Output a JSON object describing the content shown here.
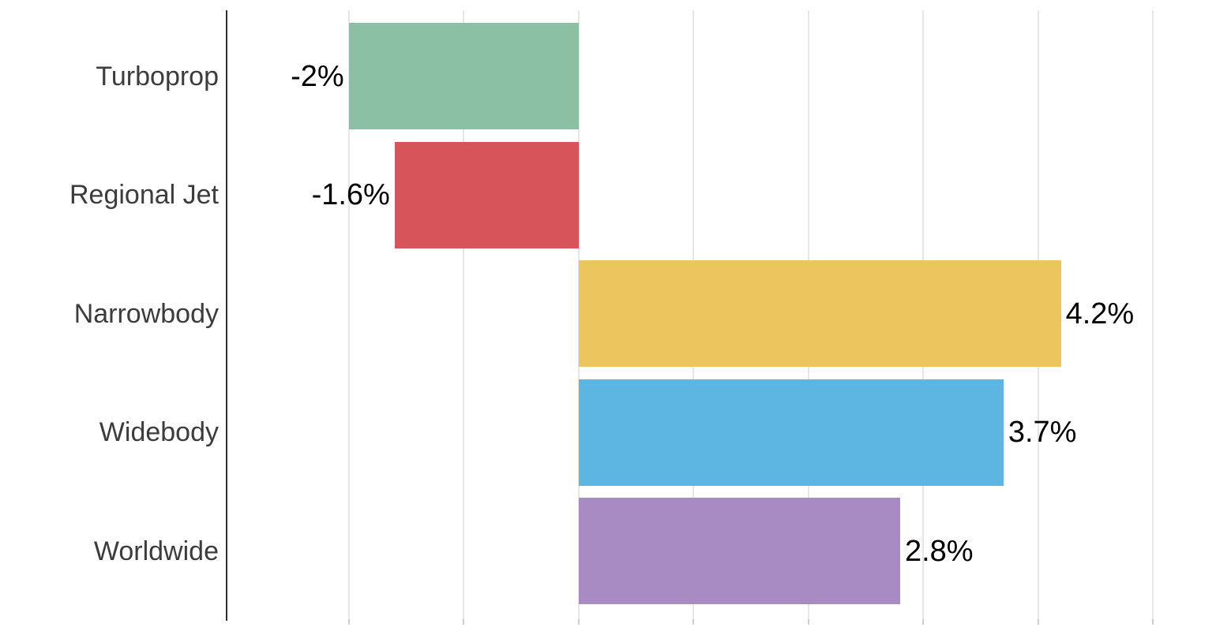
{
  "chart_data": {
    "type": "bar",
    "orientation": "horizontal",
    "title": "",
    "xlabel": "",
    "ylabel": "",
    "categories": [
      "Turboprop",
      "Regional Jet",
      "Narrowbody",
      "Widebody",
      "Worldwide"
    ],
    "values": [
      -2,
      -1.6,
      4.2,
      3.7,
      2.8
    ],
    "value_labels": [
      "-2%",
      "-1.6%",
      "4.2%",
      "3.7%",
      "2.8%"
    ],
    "bar_colors": [
      "#8CC0A4",
      "#D6545A",
      "#ECC55F",
      "#5DB5E2",
      "#A98BC4"
    ],
    "xlim": [
      -3.07,
      5.55
    ],
    "gridlines_x": [
      -2,
      -1,
      0,
      1,
      2,
      3,
      4,
      5
    ],
    "grid": true,
    "legend": false,
    "colors": {
      "background": "#FFFFFF",
      "axis_line": "#2F2F2F",
      "gridline": "#E7E7E7",
      "grid_tick": "#CFCFCF",
      "category_label": "#3C3C3C",
      "value_label": "#000000"
    }
  }
}
